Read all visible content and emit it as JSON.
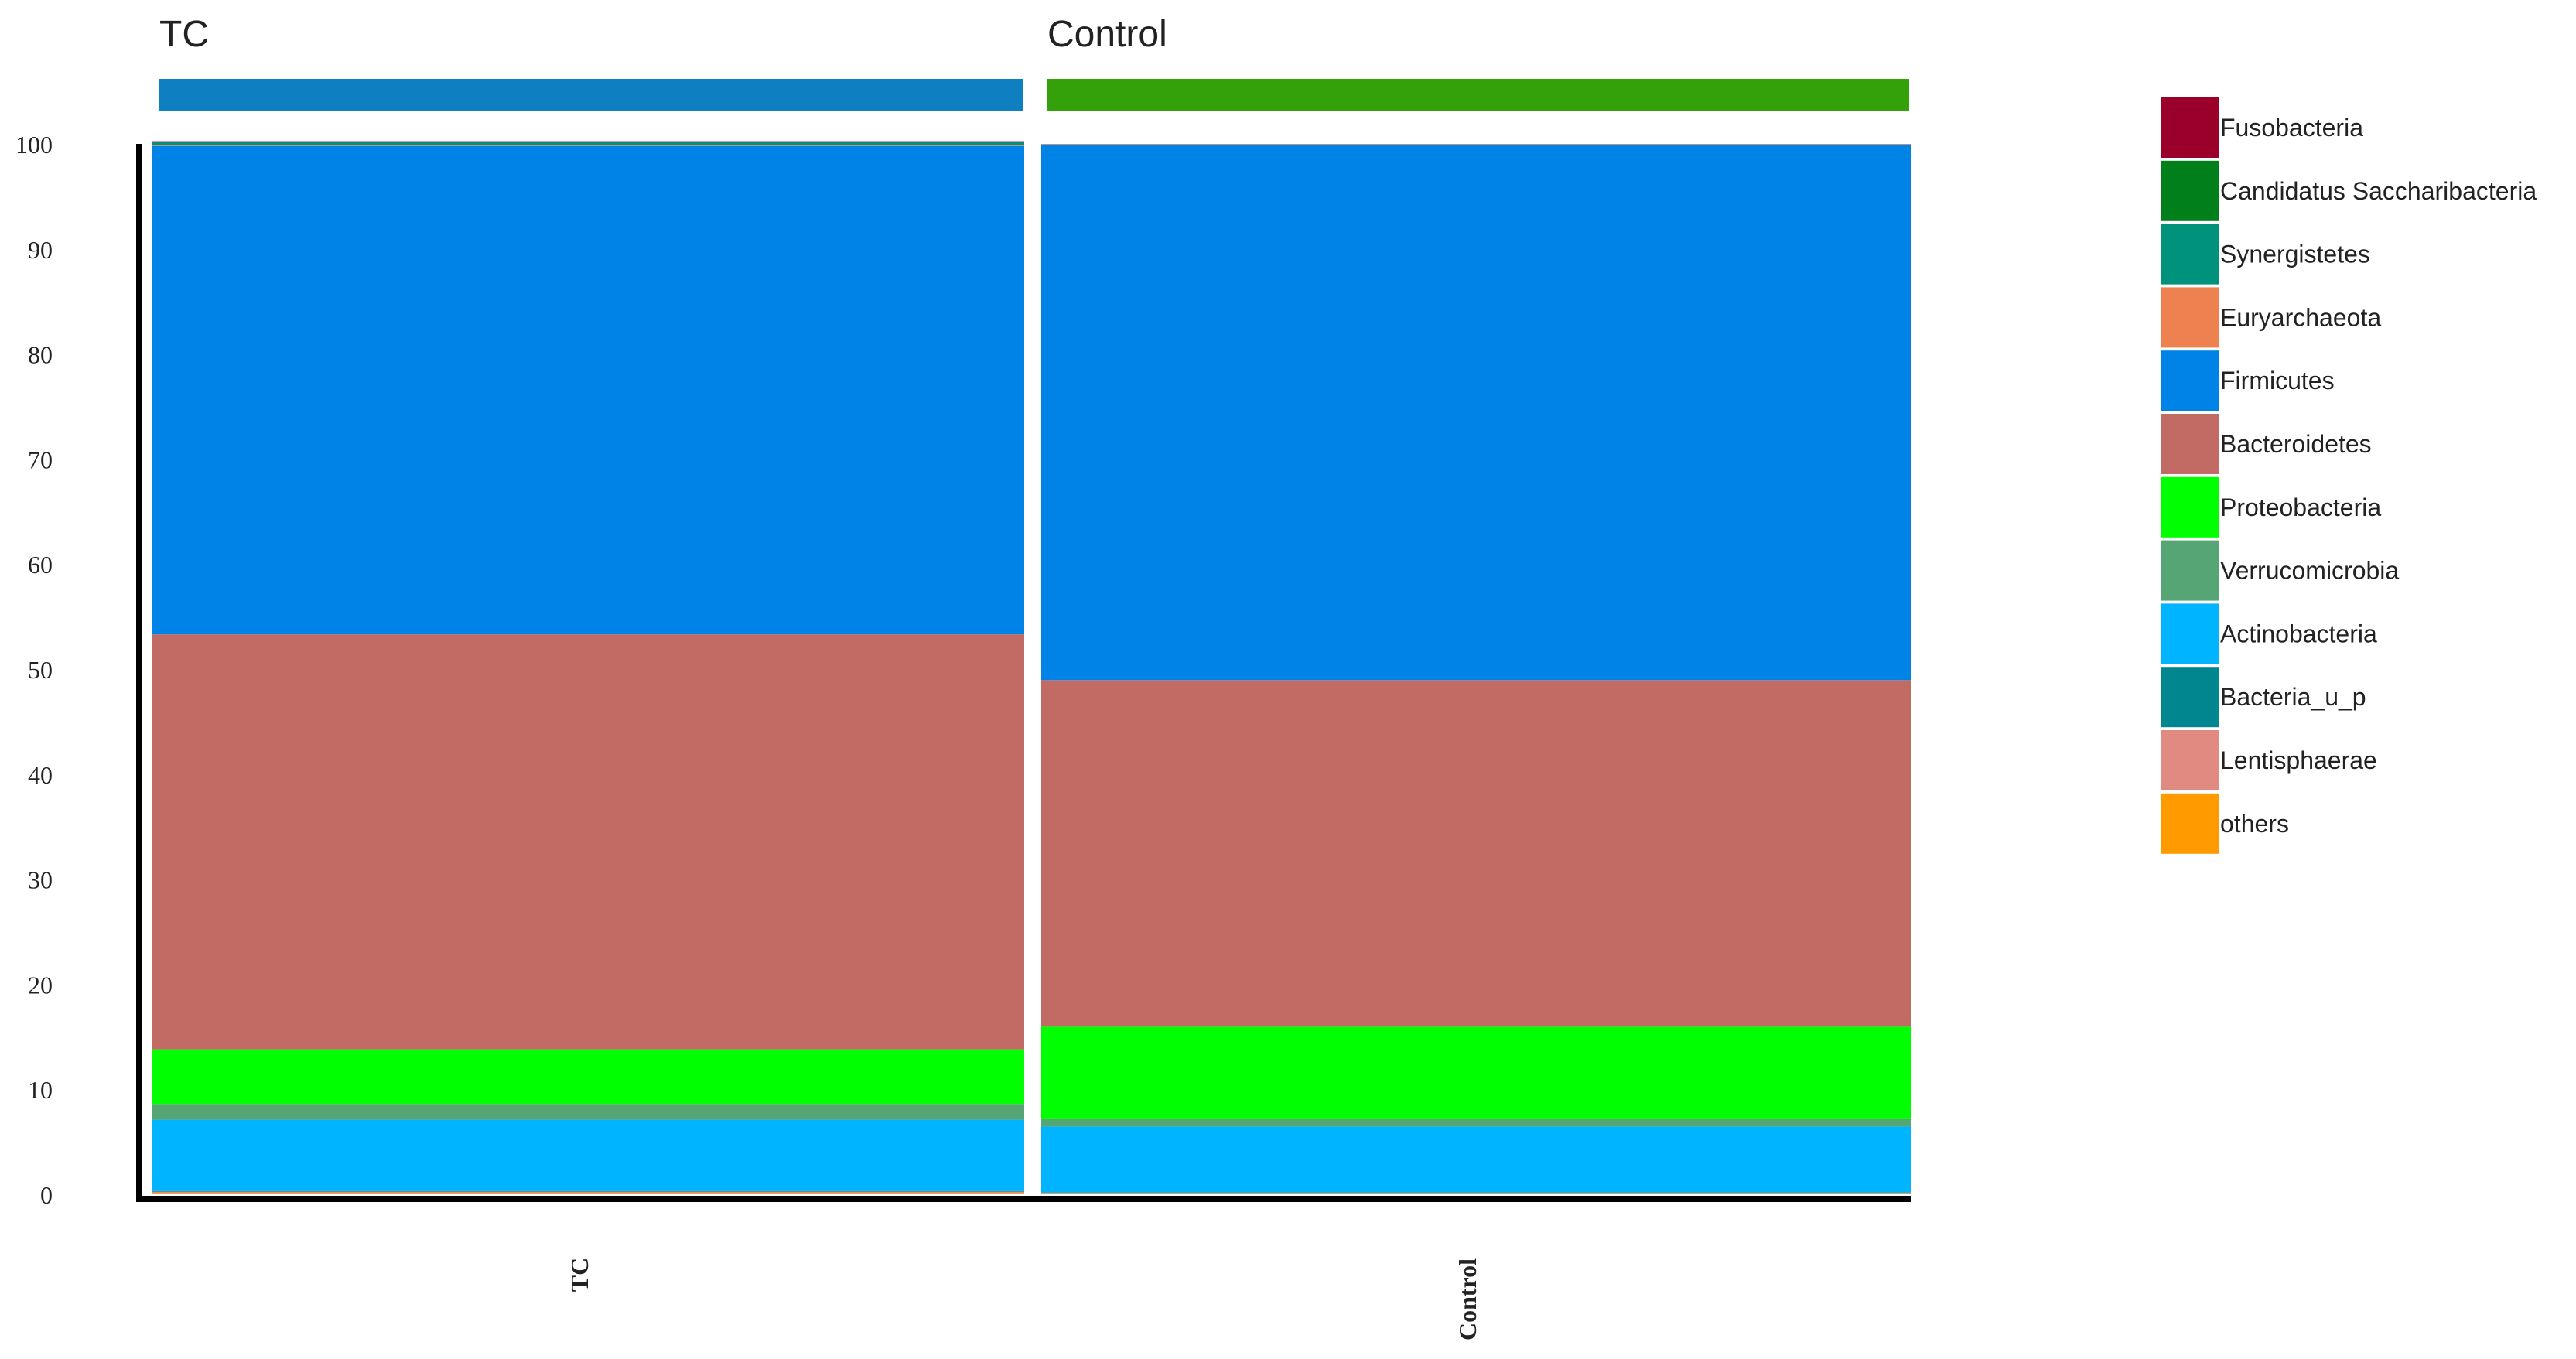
{
  "chart_data": {
    "type": "bar",
    "stacked": true,
    "groups": [
      {
        "label": "TC",
        "color": "#0e7fc0"
      },
      {
        "label": "Control",
        "color": "#34a10b"
      }
    ],
    "categories": [
      "TC",
      "Control"
    ],
    "ylim": [
      0,
      100
    ],
    "yticks": [
      "0",
      "10",
      "20",
      "30",
      "40",
      "50",
      "60",
      "70",
      "80",
      "90",
      "100"
    ],
    "series": [
      {
        "name": "others",
        "color": "#ff9a00",
        "values": [
          0.05,
          0.05
        ]
      },
      {
        "name": "Lentisphaerae",
        "color": "#e08a82",
        "values": [
          0.2,
          0.05
        ]
      },
      {
        "name": "Bacteria_u_p",
        "color": "#00868f",
        "values": [
          0.05,
          0.05
        ]
      },
      {
        "name": "Actinobacteria",
        "color": "#00b4ff",
        "values": [
          6.8,
          6.3
        ]
      },
      {
        "name": "Verrucomicrobia",
        "color": "#56a574",
        "values": [
          1.5,
          0.7
        ]
      },
      {
        "name": "Proteobacteria",
        "color": "#00ff00",
        "values": [
          5.2,
          8.8
        ]
      },
      {
        "name": "Bacteroidetes",
        "color": "#c26b64",
        "values": [
          39.5,
          33.0
        ]
      },
      {
        "name": "Firmicutes",
        "color": "#0083e6",
        "values": [
          46.5,
          51.0
        ]
      },
      {
        "name": "Euryarchaeota",
        "color": "#ed8150",
        "values": [
          0.05,
          0.05
        ]
      },
      {
        "name": "Synergistetes",
        "color": "#00927a",
        "values": [
          0.3,
          0.0
        ]
      },
      {
        "name": "Candidatus Saccharibacteria",
        "color": "#007f1b",
        "values": [
          0.05,
          0.0
        ]
      },
      {
        "name": "Fusobacteria",
        "color": "#9b002b",
        "values": [
          0.05,
          0.0
        ]
      }
    ],
    "legend": [
      {
        "name": "Fusobacteria",
        "color": "#9b002b"
      },
      {
        "name": "Candidatus Saccharibacteria",
        "color": "#007f1b"
      },
      {
        "name": "Synergistetes",
        "color": "#00927a"
      },
      {
        "name": "Euryarchaeota",
        "color": "#ed8150"
      },
      {
        "name": "Firmicutes",
        "color": "#0083e6"
      },
      {
        "name": "Bacteroidetes",
        "color": "#c26b64"
      },
      {
        "name": "Proteobacteria",
        "color": "#00ff00"
      },
      {
        "name": "Verrucomicrobia",
        "color": "#56a574"
      },
      {
        "name": "Actinobacteria",
        "color": "#00b4ff"
      },
      {
        "name": "Bacteria_u_p",
        "color": "#00868f"
      },
      {
        "name": "Lentisphaerae",
        "color": "#e08a82"
      },
      {
        "name": "others",
        "color": "#ff9a00"
      }
    ],
    "legend_position": "right",
    "grid": false
  }
}
